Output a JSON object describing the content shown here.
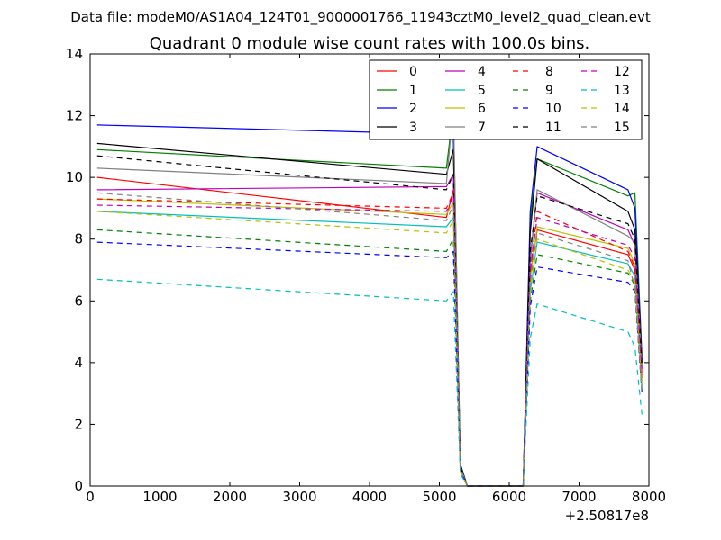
{
  "chart_data": {
    "type": "line",
    "suptitle": "Data file: modeM0/AS1A04_124T01_9000001766_11943cztM0_level2_quad_clean.evt",
    "title": "Quadrant 0 module wise count rates with 100.0s bins.",
    "xlabel": "",
    "ylabel": "",
    "x_offset_label": "+2.50817e8",
    "xlim": [
      0,
      8000
    ],
    "ylim": [
      0,
      14
    ],
    "xticks": [
      0,
      1000,
      2000,
      3000,
      4000,
      5000,
      6000,
      7000,
      8000
    ],
    "yticks": [
      0,
      2,
      4,
      6,
      8,
      10,
      12,
      14
    ],
    "legend_position": "top-right",
    "legend_columns": 4,
    "x": [
      100,
      5100,
      5200,
      5300,
      5400,
      6100,
      6200,
      6300,
      6400,
      7700,
      7800,
      7900
    ],
    "series": [
      {
        "name": "0",
        "color": "#ff0000",
        "dash": "solid",
        "values": [
          10.0,
          8.7,
          9.6,
          0.6,
          0.0,
          0.0,
          0.0,
          6.8,
          8.3,
          7.5,
          7.0,
          3.5
        ]
      },
      {
        "name": "1",
        "color": "#008000",
        "dash": "solid",
        "values": [
          10.9,
          10.3,
          12.2,
          0.7,
          0.0,
          0.0,
          0.0,
          8.6,
          10.6,
          9.4,
          9.5,
          4.2
        ]
      },
      {
        "name": "2",
        "color": "#0000ff",
        "dash": "solid",
        "values": [
          11.7,
          11.4,
          11.3,
          0.7,
          0.0,
          0.0,
          0.0,
          8.9,
          11.0,
          9.6,
          9.0,
          4.1
        ]
      },
      {
        "name": "3",
        "color": "#000000",
        "dash": "solid",
        "values": [
          11.1,
          10.1,
          10.9,
          0.7,
          0.0,
          0.0,
          0.0,
          8.2,
          10.6,
          8.9,
          8.3,
          4.0
        ]
      },
      {
        "name": "4",
        "color": "#bf00bf",
        "dash": "solid",
        "values": [
          9.6,
          9.7,
          10.1,
          0.6,
          0.0,
          0.0,
          0.0,
          7.4,
          9.5,
          8.3,
          7.8,
          3.8
        ]
      },
      {
        "name": "5",
        "color": "#00bfbf",
        "dash": "solid",
        "values": [
          8.9,
          8.4,
          8.7,
          0.5,
          0.0,
          0.0,
          0.0,
          6.3,
          7.9,
          7.2,
          6.8,
          3.2
        ]
      },
      {
        "name": "6",
        "color": "#bfbf00",
        "dash": "solid",
        "values": [
          9.3,
          8.8,
          9.2,
          0.6,
          0.0,
          0.0,
          0.0,
          6.7,
          8.4,
          7.7,
          7.2,
          3.4
        ]
      },
      {
        "name": "7",
        "color": "#808080",
        "dash": "solid",
        "values": [
          10.3,
          9.8,
          12.3,
          0.6,
          0.0,
          0.0,
          0.0,
          7.2,
          9.6,
          8.1,
          7.9,
          3.9
        ]
      },
      {
        "name": "8",
        "color": "#ff0000",
        "dash": "dashed",
        "values": [
          9.3,
          9.0,
          9.5,
          0.6,
          0.0,
          0.0,
          0.0,
          6.9,
          8.9,
          7.6,
          7.1,
          3.6
        ]
      },
      {
        "name": "9",
        "color": "#008000",
        "dash": "dashed",
        "values": [
          8.3,
          7.6,
          8.0,
          0.5,
          0.0,
          0.0,
          0.0,
          6.0,
          7.5,
          6.9,
          6.5,
          3.1
        ]
      },
      {
        "name": "10",
        "color": "#0000ff",
        "dash": "dashed",
        "values": [
          7.9,
          7.4,
          7.6,
          0.5,
          0.0,
          0.0,
          0.0,
          5.8,
          7.1,
          6.6,
          6.3,
          3.0
        ]
      },
      {
        "name": "11",
        "color": "#000000",
        "dash": "dashed",
        "values": [
          10.7,
          9.6,
          10.1,
          0.6,
          0.0,
          0.0,
          0.0,
          7.6,
          9.4,
          8.5,
          8.0,
          3.9
        ]
      },
      {
        "name": "12",
        "color": "#bf00bf",
        "dash": "dashed",
        "values": [
          9.1,
          8.9,
          9.4,
          0.6,
          0.0,
          0.0,
          0.0,
          7.0,
          8.7,
          7.8,
          7.4,
          3.6
        ]
      },
      {
        "name": "13",
        "color": "#00bfbf",
        "dash": "dashed",
        "values": [
          6.7,
          6.0,
          6.3,
          0.4,
          0.0,
          0.0,
          0.0,
          4.8,
          5.9,
          5.0,
          4.5,
          2.3
        ]
      },
      {
        "name": "14",
        "color": "#bfbf00",
        "dash": "dashed",
        "values": [
          8.9,
          8.2,
          8.6,
          0.5,
          0.0,
          0.0,
          0.0,
          6.4,
          8.0,
          7.0,
          6.6,
          3.2
        ]
      },
      {
        "name": "15",
        "color": "#808080",
        "dash": "dashed",
        "values": [
          9.5,
          8.6,
          9.1,
          0.6,
          0.0,
          0.0,
          0.0,
          6.6,
          8.2,
          7.3,
          6.4,
          3.0
        ]
      }
    ]
  }
}
